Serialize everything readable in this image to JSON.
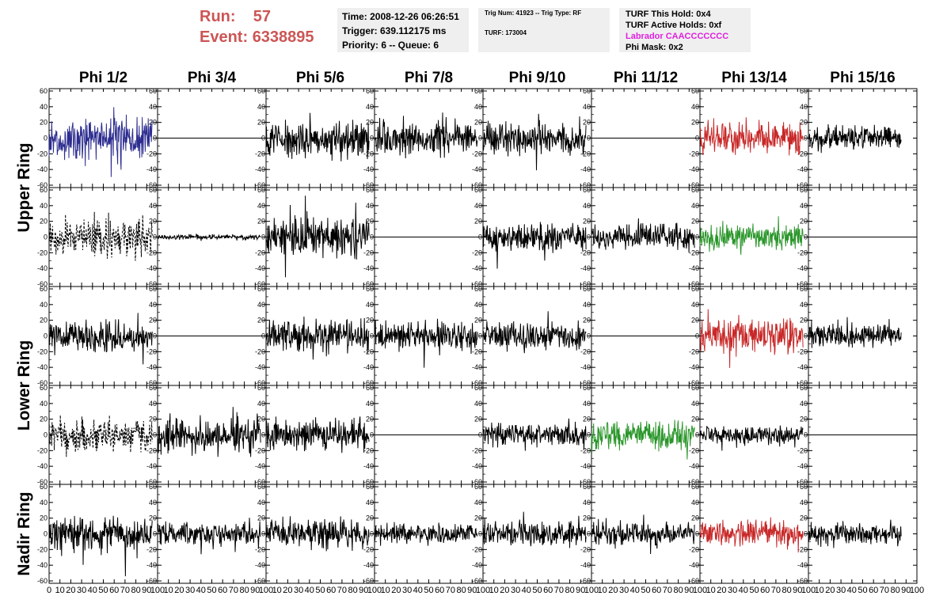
{
  "header": {
    "run_label": "Run:",
    "run_value": "57",
    "event_label": "Event:",
    "event_value": "6338895"
  },
  "info_time": {
    "time": "Time: 2008-12-26 06:26:51",
    "trigger": "Trigger: 639.112175 ms",
    "priority": "Priority: 6 -- Queue: 6"
  },
  "info_trig": {
    "trig": "Trig Num: 41923 -- Trig Type: RF",
    "turf": "TURF: 173004"
  },
  "info_turf": {
    "hold": "TURF This Hold: 0x4",
    "active": "TURF Active Holds: 0xf",
    "labrador": "Labrador CAACCCCCCC",
    "mask": "Phi Mask: 0x2"
  },
  "chart_data": {
    "type": "line",
    "columns": [
      "Phi 1/2",
      "Phi 3/4",
      "Phi 5/6",
      "Phi 7/8",
      "Phi 9/10",
      "Phi 11/12",
      "Phi 13/14",
      "Phi 15/16"
    ],
    "ring_labels": [
      {
        "label": "Upper Ring",
        "rows": [
          0,
          1
        ]
      },
      {
        "label": "Lower Ring",
        "rows": [
          2,
          3
        ]
      },
      {
        "label": "Nadir Ring",
        "rows": [
          4,
          4
        ]
      }
    ],
    "xlim": [
      0,
      100
    ],
    "ylim": [
      -60,
      60
    ],
    "x_ticks": [
      0,
      10,
      20,
      30,
      40,
      50,
      60,
      70,
      80,
      90,
      100
    ],
    "y_ticks": [
      -60,
      -40,
      -20,
      0,
      20,
      40,
      60
    ],
    "waveform_x_range": [
      0,
      95
    ],
    "colors": {
      "blue": "#2c2c90",
      "red": "#c82828",
      "green": "#2a962a",
      "black": "#000000"
    },
    "panels": [
      [
        {
          "c": "blue",
          "a": 26,
          "s": 101
        },
        {
          "c": "black",
          "a": 0,
          "s": 102
        },
        {
          "c": "black",
          "a": 20,
          "s": 103
        },
        {
          "c": "black",
          "a": 18,
          "s": 104
        },
        {
          "c": "black",
          "a": 18,
          "s": 105
        },
        {
          "c": "black",
          "a": 0,
          "s": 106
        },
        {
          "c": "red",
          "a": 18,
          "s": 107
        },
        {
          "c": "black",
          "a": 14,
          "s": 108,
          "gap": 1
        }
      ],
      [
        {
          "c": "black",
          "a": 22,
          "s": 201,
          "dash": 1
        },
        {
          "c": "black",
          "a": 2.5,
          "s": 202
        },
        {
          "c": "black",
          "a": 22,
          "s": 203
        },
        {
          "c": "black",
          "a": 0,
          "s": 204
        },
        {
          "c": "black",
          "a": 16,
          "s": 205
        },
        {
          "c": "black",
          "a": 14,
          "s": 206
        },
        {
          "c": "green",
          "a": 14,
          "s": 207
        },
        {
          "c": "black",
          "a": 0,
          "s": 208,
          "gap": 1
        }
      ],
      [
        {
          "c": "black",
          "a": 17,
          "s": 301
        },
        {
          "c": "black",
          "a": 0,
          "s": 302
        },
        {
          "c": "black",
          "a": 20,
          "s": 303
        },
        {
          "c": "black",
          "a": 16,
          "s": 304
        },
        {
          "c": "black",
          "a": 16,
          "s": 305
        },
        {
          "c": "black",
          "a": 0,
          "s": 306
        },
        {
          "c": "red",
          "a": 20,
          "s": 307
        },
        {
          "c": "black",
          "a": 13,
          "s": 308,
          "gap": 1
        }
      ],
      [
        {
          "c": "black",
          "a": 18,
          "s": 401,
          "dash": 1
        },
        {
          "c": "black",
          "a": 20,
          "s": 402
        },
        {
          "c": "black",
          "a": 18,
          "s": 403
        },
        {
          "c": "black",
          "a": 0,
          "s": 404
        },
        {
          "c": "black",
          "a": 14,
          "s": 405
        },
        {
          "c": "green",
          "a": 17,
          "s": 406
        },
        {
          "c": "black",
          "a": 12,
          "s": 407
        },
        {
          "c": "black",
          "a": 0,
          "s": 408,
          "gap": 1
        }
      ],
      [
        {
          "c": "black",
          "a": 20,
          "s": 501
        },
        {
          "c": "black",
          "a": 15,
          "s": 502
        },
        {
          "c": "black",
          "a": 17,
          "s": 503
        },
        {
          "c": "black",
          "a": 12,
          "s": 504
        },
        {
          "c": "black",
          "a": 14,
          "s": 505
        },
        {
          "c": "black",
          "a": 14,
          "s": 506
        },
        {
          "c": "red",
          "a": 16,
          "s": 507
        },
        {
          "c": "black",
          "a": 13,
          "s": 508,
          "gap": 1
        }
      ]
    ]
  }
}
